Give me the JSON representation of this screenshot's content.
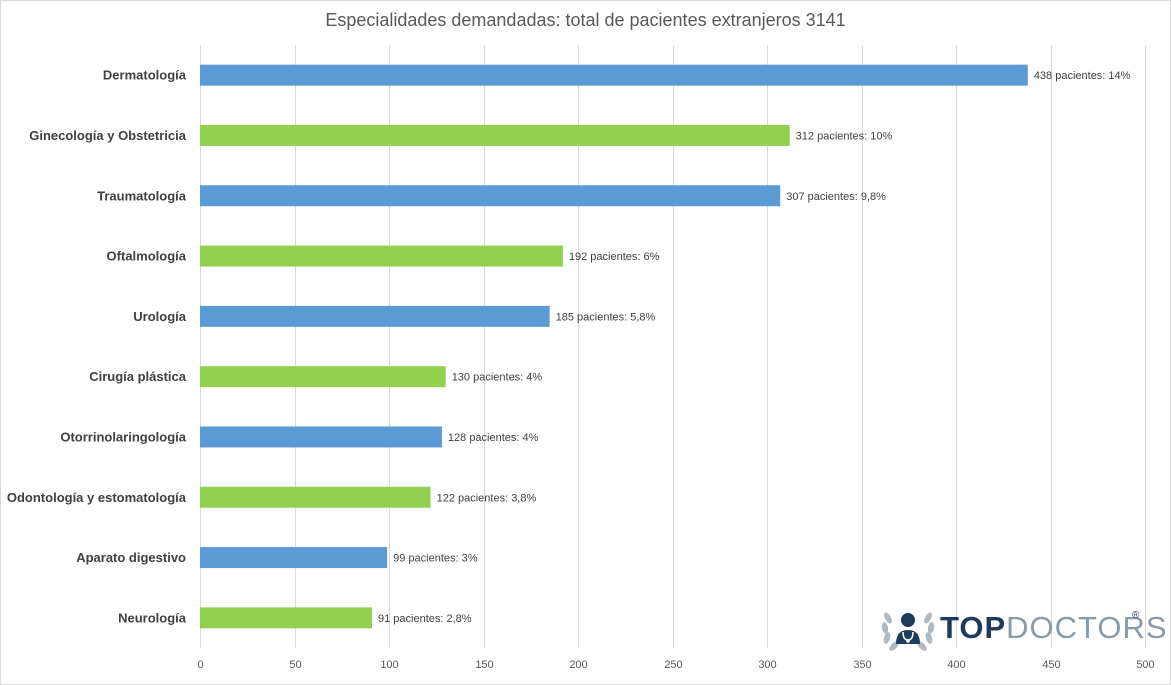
{
  "chart_data": {
    "type": "bar",
    "orientation": "horizontal",
    "title": "Especialidades demandadas: total de pacientes extranjeros 3141",
    "xlabel": "",
    "ylabel": "",
    "xlim": [
      0,
      500
    ],
    "xticks": [
      "0",
      "50",
      "100",
      "150",
      "200",
      "250",
      "300",
      "350",
      "400",
      "450",
      "500"
    ],
    "grid": "vertical",
    "legend": "none",
    "colors": [
      "#5b9bd5",
      "#92d050"
    ],
    "categories": [
      "Dermatología",
      "Ginecología y Obstetricia",
      "Traumatología",
      "Oftalmología",
      "Urología",
      "Cirugía plástica",
      "Otorrinolaringología",
      "Odontología y estomatología",
      "Aparato digestivo",
      "Neurología"
    ],
    "values": [
      438,
      312,
      307,
      192,
      185,
      130,
      128,
      122,
      99,
      91
    ],
    "data_labels": [
      "438 pacientes: 14%",
      "312 pacientes: 10%",
      "307 pacientes: 9,8%",
      "192 pacientes: 6%",
      "185 pacientes: 5,8%",
      "130 pacientes: 4%",
      "128 pacientes: 4%",
      "122 pacientes: 3,8%",
      "99 pacientes: 3%",
      "91 pacientes: 2,8%"
    ]
  },
  "logo": {
    "word_top": "TOP",
    "word_doctors": "DOCTORS",
    "registered": "®",
    "icon": "doctor-laurel-icon"
  }
}
